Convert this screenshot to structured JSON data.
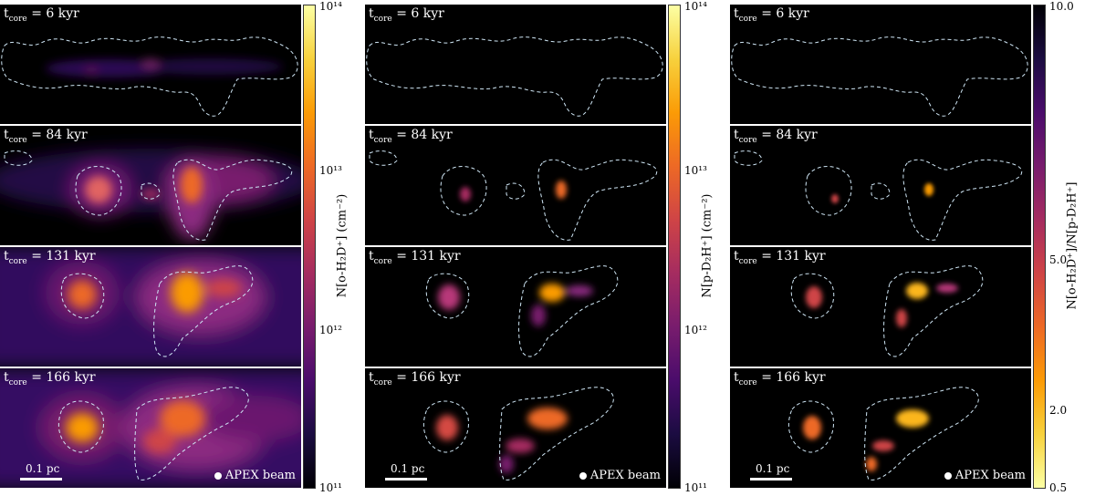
{
  "time_labels": [
    "6",
    "84",
    "131",
    "166"
  ],
  "time_prefix": "t",
  "time_subscript": "core",
  "time_unit": "= {t} kyr",
  "scale_bar_label": "0.1 pc",
  "beam_label": "APEX beam",
  "colorbars": [
    {
      "label": "N[o-H₂D⁺] (cm⁻²)",
      "colormap": "inferno",
      "scale": "log",
      "ticks": [
        "10¹⁴",
        "10¹³",
        "10¹²",
        "10¹¹"
      ]
    },
    {
      "label": "N[p-D₂H⁺] (cm⁻²)",
      "colormap": "inferno",
      "scale": "log",
      "ticks": [
        "10¹⁴",
        "10¹³",
        "10¹²",
        "10¹¹"
      ]
    },
    {
      "label": "N[o-H₂D⁺]/N[p-D₂H⁺]",
      "colormap": "inferno_r",
      "scale": "log",
      "ticks": [
        "10.0",
        "5.0",
        "2.0",
        "0.5"
      ]
    }
  ],
  "colors": {
    "contour": "#cfe6f5",
    "background": "#000000"
  }
}
